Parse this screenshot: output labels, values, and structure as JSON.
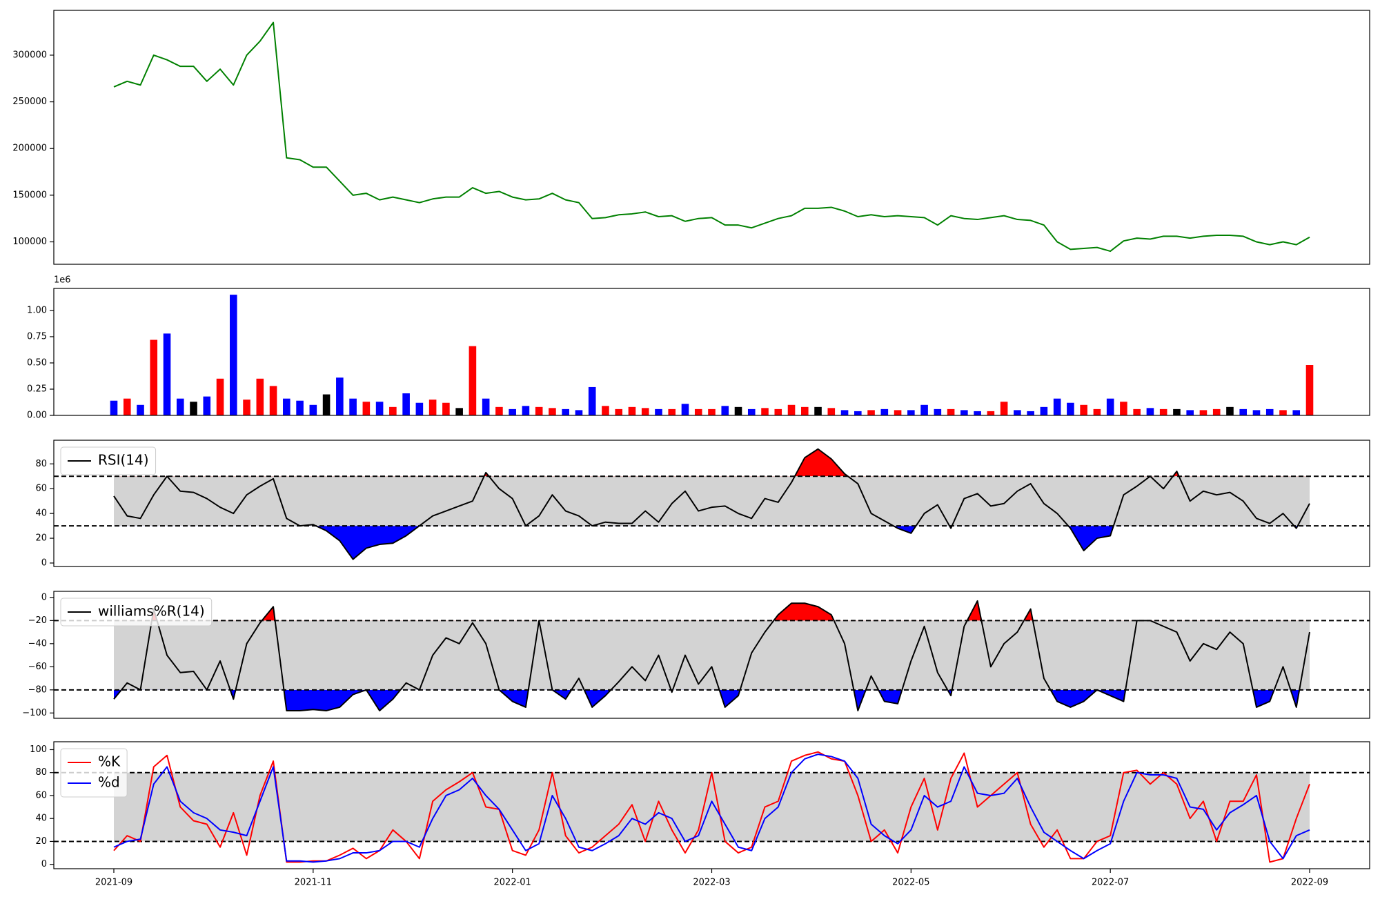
{
  "chart_data": [
    {
      "type": "line",
      "series": [
        {
          "color": "green",
          "values": [
            266000,
            272000,
            268000,
            300000,
            295000,
            288000,
            288000,
            272000,
            285000,
            268000,
            300000,
            315000,
            335000,
            190000,
            188000,
            180000,
            180000,
            165000,
            150000,
            152000,
            145000,
            148000,
            145000,
            142000,
            146000,
            148000,
            148000,
            158000,
            152000,
            154000,
            148000,
            145000,
            146000,
            152000,
            145000,
            142000,
            125000,
            126000,
            129000,
            130000,
            132000,
            127000,
            128000,
            122000,
            125000,
            126000,
            118000,
            118000,
            115000,
            120000,
            125000,
            128000,
            136000,
            136000,
            137000,
            133000,
            127000,
            129000,
            127000,
            128000,
            127000,
            126000,
            118000,
            128000,
            125000,
            124000,
            126000,
            128000,
            124000,
            123000,
            118000,
            100000,
            92000,
            93000,
            94000,
            90000,
            101000,
            104000,
            103000,
            106000,
            106000,
            104000,
            106000,
            107000,
            107000,
            106000,
            100000,
            97000,
            100000,
            97000,
            105000
          ]
        }
      ],
      "ylim": [
        76000,
        348000
      ],
      "yticks": [
        100000,
        150000,
        200000,
        250000,
        300000
      ]
    },
    {
      "type": "bar",
      "offset_label": "1e6",
      "values": [
        0.14,
        0.16,
        0.1,
        0.72,
        0.78,
        0.16,
        0.13,
        0.18,
        0.35,
        1.15,
        0.15,
        0.35,
        0.28,
        0.16,
        0.14,
        0.1,
        0.2,
        0.36,
        0.16,
        0.13,
        0.13,
        0.08,
        0.21,
        0.12,
        0.15,
        0.12,
        0.07,
        0.66,
        0.16,
        0.08,
        0.06,
        0.09,
        0.08,
        0.07,
        0.06,
        0.05,
        0.27,
        0.09,
        0.06,
        0.08,
        0.07,
        0.06,
        0.06,
        0.11,
        0.06,
        0.06,
        0.09,
        0.08,
        0.06,
        0.07,
        0.06,
        0.1,
        0.08,
        0.08,
        0.07,
        0.05,
        0.04,
        0.05,
        0.06,
        0.05,
        0.05,
        0.1,
        0.06,
        0.06,
        0.05,
        0.04,
        0.04,
        0.13,
        0.05,
        0.04,
        0.08,
        0.16,
        0.12,
        0.1,
        0.06,
        0.16,
        0.13,
        0.06,
        0.07,
        0.06,
        0.06,
        0.05,
        0.05,
        0.06,
        0.08,
        0.06,
        0.05,
        0.06,
        0.05,
        0.05,
        0.48
      ],
      "up_color": "red",
      "down_color": "blue",
      "flat_color": "black",
      "ylim": [
        0,
        1.21
      ],
      "yticks": [
        {
          "value": 0,
          "label": "0.00"
        },
        {
          "value": 0.25,
          "label": "0.25"
        },
        {
          "value": 0.5,
          "label": "0.50"
        },
        {
          "value": 0.75,
          "label": "0.75"
        },
        {
          "value": 1,
          "label": "1.00"
        }
      ]
    },
    {
      "type": "line",
      "series": [
        {
          "name": "RSI(14)",
          "color": "black",
          "values": [
            54,
            38,
            36,
            55,
            70,
            58,
            57,
            52,
            45,
            40,
            55,
            62,
            68,
            36,
            30,
            31,
            26,
            18,
            3,
            12,
            15,
            16,
            22,
            30,
            38,
            42,
            46,
            50,
            73,
            60,
            52,
            30,
            38,
            55,
            42,
            38,
            30,
            33,
            32,
            32,
            42,
            33,
            48,
            58,
            42,
            45,
            46,
            40,
            36,
            52,
            49,
            65,
            85,
            92,
            84,
            72,
            64,
            40,
            34,
            28,
            24,
            40,
            47,
            28,
            52,
            56,
            46,
            48,
            58,
            64,
            48,
            40,
            28,
            10,
            20,
            22,
            55,
            62,
            70,
            60,
            74,
            50,
            58,
            55,
            57,
            50,
            36,
            32,
            40,
            28,
            48
          ]
        }
      ],
      "hlines": [
        30,
        70
      ],
      "band_color": "lightgray",
      "fill_above_color": "red",
      "fill_below_color": "blue",
      "legend": "upper left",
      "ylim": [
        -2.8,
        99.1
      ],
      "yticks": [
        0,
        20,
        40,
        60,
        80
      ]
    },
    {
      "type": "line",
      "series": [
        {
          "name": "williams%R(14)",
          "color": "black",
          "values": [
            -88,
            -74,
            -80,
            -10,
            -50,
            -65,
            -64,
            -80,
            -55,
            -88,
            -40,
            -22,
            -8,
            -98,
            -98,
            -97,
            -98,
            -95,
            -84,
            -80,
            -98,
            -88,
            -74,
            -80,
            -50,
            -35,
            -40,
            -22,
            -40,
            -80,
            -90,
            -95,
            -20,
            -80,
            -88,
            -70,
            -95,
            -85,
            -73,
            -60,
            -72,
            -50,
            -82,
            -50,
            -75,
            -60,
            -95,
            -85,
            -48,
            -30,
            -15,
            -5,
            -5,
            -8,
            -15,
            -40,
            -98,
            -68,
            -90,
            -92,
            -55,
            -25,
            -65,
            -85,
            -25,
            -3,
            -60,
            -40,
            -30,
            -10,
            -70,
            -90,
            -95,
            -90,
            -80,
            -85,
            -90,
            -20,
            -20,
            -25,
            -30,
            -55,
            -40,
            -45,
            -30,
            -40,
            -95,
            -90,
            -60,
            -95,
            -30
          ]
        }
      ],
      "hlines": [
        -80,
        -20
      ],
      "band_color": "lightgray",
      "fill_above_color": "red",
      "fill_below_color": "blue",
      "legend": "upper left",
      "ylim": [
        -104.6,
        5.3
      ],
      "yticks": [
        {
          "value": -100,
          "label": "−100"
        },
        {
          "value": -80,
          "label": "−80"
        },
        {
          "value": -60,
          "label": "−60"
        },
        {
          "value": -40,
          "label": "−40"
        },
        {
          "value": -20,
          "label": "−20"
        },
        0
      ]
    },
    {
      "type": "line",
      "categories": [
        "2021-09",
        null,
        null,
        null,
        null,
        null,
        null,
        null,
        null,
        null,
        null,
        null,
        null,
        null,
        null,
        "2021-11",
        null,
        null,
        null,
        null,
        null,
        null,
        null,
        null,
        null,
        null,
        null,
        null,
        null,
        null,
        "2022-01",
        null,
        null,
        null,
        null,
        null,
        null,
        null,
        null,
        null,
        null,
        null,
        null,
        null,
        null,
        "2022-03",
        null,
        null,
        null,
        null,
        null,
        null,
        null,
        null,
        null,
        null,
        null,
        null,
        null,
        null,
        "2022-05",
        null,
        null,
        null,
        null,
        null,
        null,
        null,
        null,
        null,
        null,
        null,
        null,
        null,
        null,
        "2022-07",
        null,
        null,
        null,
        null,
        null,
        null,
        null,
        null,
        null,
        null,
        null,
        null,
        null,
        null,
        "2022-09"
      ],
      "series": [
        {
          "name": "%K",
          "color": "red",
          "values": [
            12,
            25,
            20,
            85,
            95,
            50,
            38,
            35,
            15,
            45,
            8,
            60,
            90,
            2,
            2,
            3,
            3,
            8,
            14,
            5,
            12,
            30,
            20,
            5,
            55,
            65,
            72,
            80,
            50,
            48,
            12,
            8,
            30,
            80,
            25,
            10,
            15,
            25,
            35,
            52,
            20,
            55,
            30,
            10,
            30,
            80,
            20,
            10,
            15,
            50,
            55,
            90,
            95,
            98,
            92,
            90,
            60,
            20,
            30,
            10,
            50,
            75,
            30,
            75,
            97,
            50,
            60,
            70,
            80,
            35,
            15,
            30,
            5,
            5,
            20,
            25,
            80,
            82,
            70,
            80,
            70,
            40,
            55,
            20,
            55,
            55,
            78,
            2,
            5,
            40,
            70
          ]
        },
        {
          "name": "%d",
          "color": "blue",
          "values": [
            15,
            20,
            22,
            70,
            85,
            55,
            45,
            40,
            30,
            28,
            25,
            55,
            85,
            3,
            3,
            2,
            3,
            5,
            10,
            10,
            12,
            20,
            20,
            15,
            40,
            60,
            65,
            75,
            60,
            48,
            30,
            12,
            18,
            60,
            40,
            15,
            12,
            18,
            25,
            40,
            35,
            45,
            40,
            20,
            25,
            55,
            35,
            15,
            12,
            40,
            50,
            80,
            92,
            96,
            94,
            90,
            75,
            35,
            25,
            18,
            30,
            60,
            50,
            55,
            85,
            62,
            60,
            62,
            75,
            50,
            28,
            20,
            12,
            5,
            12,
            18,
            55,
            80,
            78,
            78,
            75,
            50,
            48,
            30,
            45,
            52,
            60,
            20,
            5,
            25,
            30
          ]
        }
      ],
      "hlines": [
        20,
        80
      ],
      "band_color": "lightgray",
      "legend": "upper left",
      "ylim": [
        -3.8,
        106.9
      ],
      "yticks": [
        0,
        20,
        40,
        60,
        80,
        100
      ]
    }
  ]
}
